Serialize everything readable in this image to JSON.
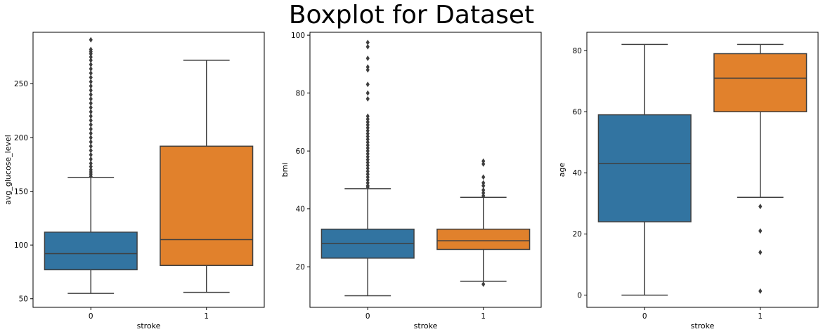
{
  "suptitle": "Boxplot for Dataset",
  "colors": {
    "group0": "#3274a1",
    "group1": "#e1812c",
    "line": "#3f3f3f",
    "flier": "#3f3f3f"
  },
  "chart_data": [
    {
      "type": "box",
      "xlabel": "stroke",
      "ylabel": "avg_glucose_level",
      "categories": [
        "0",
        "1"
      ],
      "ylim": [
        42,
        298
      ],
      "yticks": [
        50,
        100,
        150,
        200,
        250,
        300
      ],
      "boxes": [
        {
          "whisker_low": 55,
          "q1": 77,
          "median": 92,
          "q3": 112,
          "whisker_high": 163,
          "fliers": [
            164,
            166,
            168,
            170,
            173,
            176,
            180,
            184,
            188,
            192,
            196,
            200,
            204,
            208,
            212,
            216,
            220,
            224,
            228,
            232,
            236,
            240,
            244,
            248,
            252,
            256,
            260,
            264,
            268,
            272,
            275,
            278,
            280,
            282,
            291
          ]
        },
        {
          "whisker_low": 56,
          "q1": 81,
          "median": 105,
          "q3": 192,
          "whisker_high": 272,
          "fliers": []
        }
      ]
    },
    {
      "type": "box",
      "xlabel": "stroke",
      "ylabel": "bmi",
      "categories": [
        "0",
        "1"
      ],
      "ylim": [
        6,
        101
      ],
      "yticks": [
        20,
        40,
        60,
        80,
        100
      ],
      "boxes": [
        {
          "whisker_low": 10,
          "q1": 23,
          "median": 28,
          "q3": 33,
          "whisker_high": 47,
          "fliers": [
            47.5,
            48,
            49,
            50,
            51,
            52,
            53,
            54,
            55,
            56,
            57,
            58,
            59,
            60,
            61,
            62,
            63,
            64,
            65,
            66,
            67,
            68,
            69,
            70,
            71,
            72,
            78,
            80,
            83,
            88,
            89,
            92,
            96,
            97.5
          ]
        },
        {
          "whisker_low": 15,
          "q1": 26,
          "median": 29,
          "q3": 33,
          "whisker_high": 44,
          "fliers": [
            14,
            44.5,
            45.5,
            46.5,
            48,
            49,
            51,
            55.5,
            56.5
          ]
        }
      ]
    },
    {
      "type": "box",
      "xlabel": "stroke",
      "ylabel": "age",
      "categories": [
        "0",
        "1"
      ],
      "ylim": [
        -4,
        86
      ],
      "yticks": [
        0,
        20,
        40,
        60,
        80
      ],
      "boxes": [
        {
          "whisker_low": 0,
          "q1": 24,
          "median": 43,
          "q3": 59,
          "whisker_high": 82,
          "fliers": []
        },
        {
          "whisker_low": 32,
          "q1": 60,
          "median": 71,
          "q3": 79,
          "whisker_high": 82,
          "fliers": [
            1.3,
            14,
            21,
            29
          ]
        }
      ]
    }
  ]
}
